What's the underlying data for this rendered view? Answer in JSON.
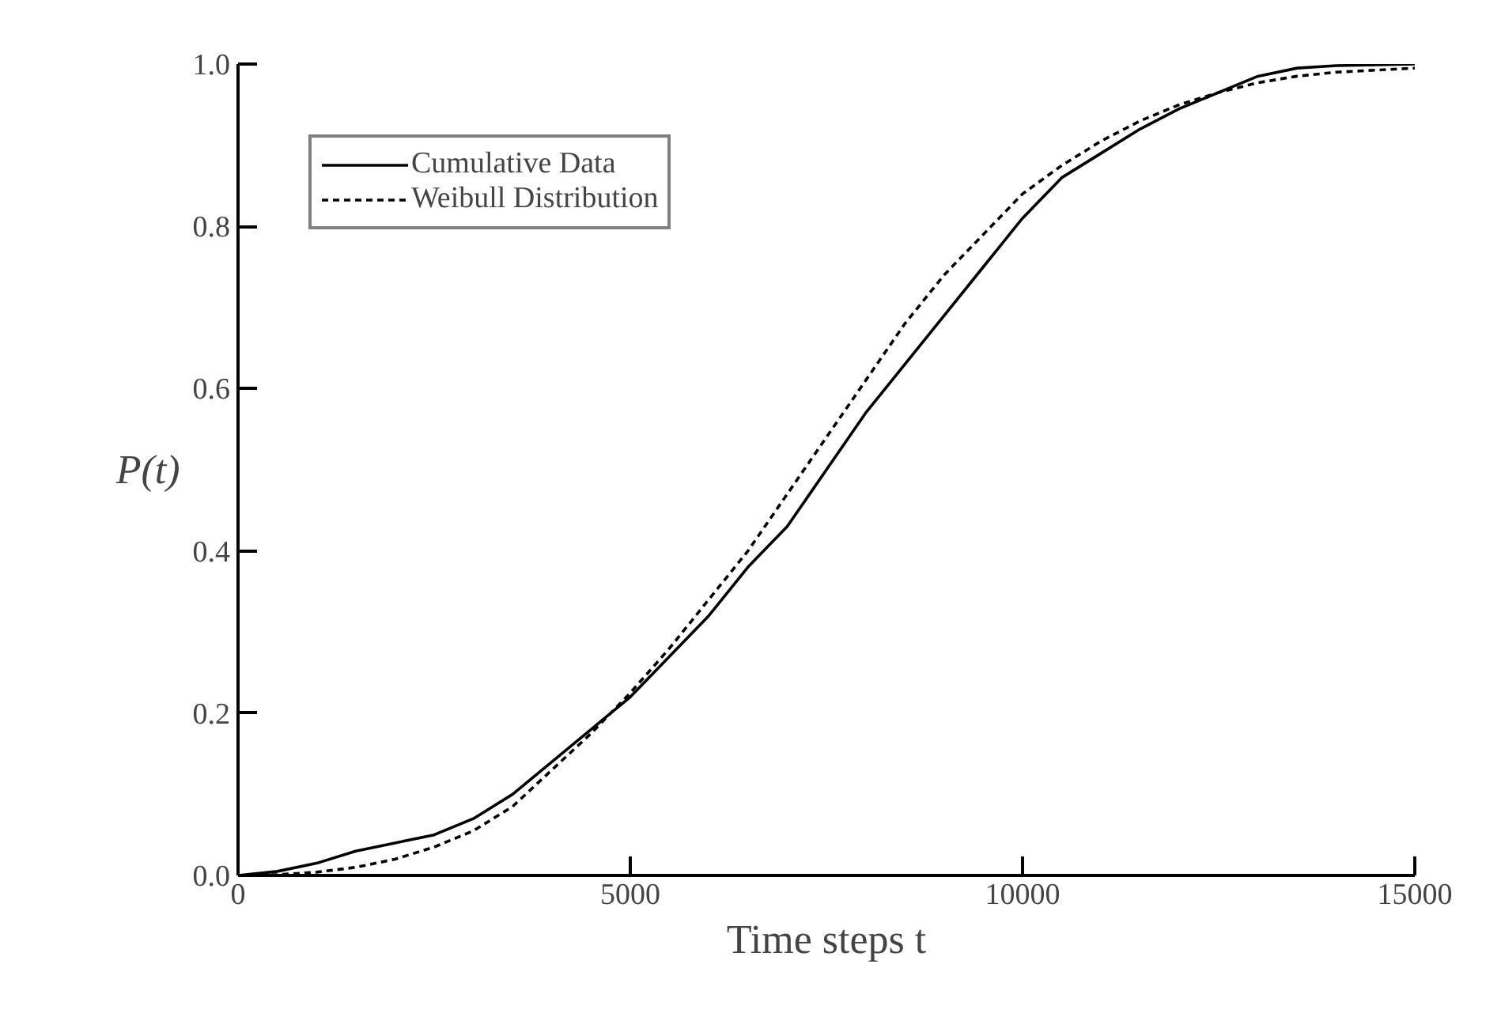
{
  "chart_data": {
    "type": "line",
    "xlabel": "Time steps t",
    "ylabel": "P(t)",
    "xlim": [
      0,
      15000
    ],
    "ylim": [
      0,
      1.0
    ],
    "xticks": [
      0,
      5000,
      10000,
      15000
    ],
    "yticks": [
      {
        "value": 0,
        "label": "0.0"
      },
      {
        "value": 0.2,
        "label": "0.2"
      },
      {
        "value": 0.4,
        "label": "0.4"
      },
      {
        "value": 0.6,
        "label": "0.6"
      },
      {
        "value": 0.8,
        "label": "0.8"
      },
      {
        "value": 1.0,
        "label": "1.0"
      }
    ],
    "grid": false,
    "legend": "top left",
    "x": [
      0,
      500,
      1000,
      1500,
      2000,
      2500,
      3000,
      3500,
      4000,
      4500,
      5000,
      5500,
      6000,
      6500,
      7000,
      7500,
      8000,
      8500,
      9000,
      9500,
      10000,
      10500,
      11000,
      11500,
      12000,
      12500,
      13000,
      13500,
      14000,
      15000
    ],
    "series": [
      {
        "name": "Cumulative Data",
        "color": "#000000",
        "line_style": "solid",
        "values": [
          0,
          0.005,
          0.015,
          0.03,
          0.04,
          0.05,
          0.07,
          0.1,
          0.14,
          0.18,
          0.22,
          0.27,
          0.32,
          0.38,
          0.43,
          0.5,
          0.57,
          0.63,
          0.69,
          0.75,
          0.81,
          0.86,
          0.89,
          0.92,
          0.945,
          0.965,
          0.985,
          0.995,
          0.998,
          1.0
        ]
      },
      {
        "name": "Weibull Distribution",
        "color": "#000000",
        "line_style": "dashed",
        "values": [
          0,
          0.001,
          0.004,
          0.01,
          0.02,
          0.035,
          0.055,
          0.085,
          0.13,
          0.175,
          0.225,
          0.28,
          0.34,
          0.4,
          0.47,
          0.54,
          0.61,
          0.68,
          0.74,
          0.79,
          0.84,
          0.875,
          0.905,
          0.93,
          0.95,
          0.965,
          0.977,
          0.985,
          0.99,
          0.995
        ]
      }
    ]
  }
}
